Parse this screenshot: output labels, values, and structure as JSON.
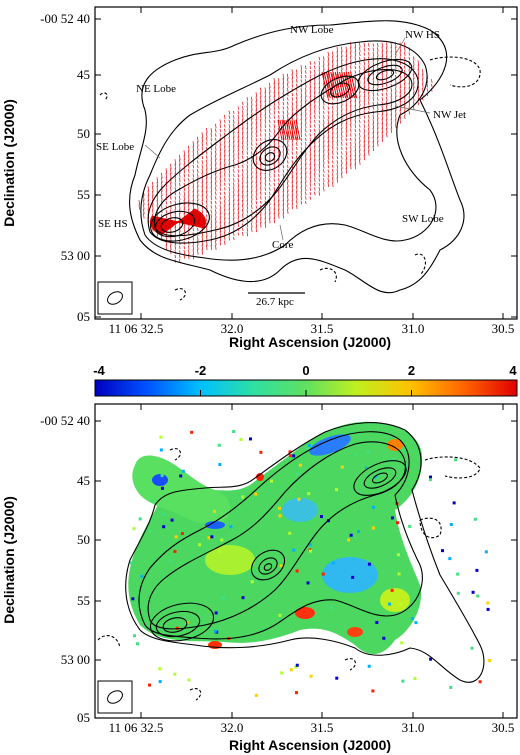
{
  "chart_data": [
    {
      "type": "contour",
      "xlabel": "Right Ascension (J2000)",
      "ylabel": "Declination (J2000)",
      "x_ticks": [
        "11 06 32.5",
        "32.0",
        "31.5",
        "31.0",
        "30.5"
      ],
      "y_ticks": [
        "-00 52 40",
        "45",
        "50",
        "55",
        "53 00",
        "05"
      ],
      "annotations": [
        "NW Lobe",
        "NW HS",
        "NE Lobe",
        "NW Jet",
        "SE Lobe",
        "SE HS",
        "Core",
        "SW Lobe"
      ],
      "scale_bar": "26.7 kpc",
      "overlay": "polarization vectors (red)",
      "beam": true
    },
    {
      "type": "heatmap",
      "xlabel": "Right Ascension (J2000)",
      "ylabel": "Declination (J2000)",
      "x_ticks": [
        "11 06 32.5",
        "32.0",
        "31.5",
        "31.0",
        "30.5"
      ],
      "y_ticks": [
        "-00 52 40",
        "45",
        "50",
        "55",
        "53 00",
        "05"
      ],
      "colorbar_ticks": [
        "-4",
        "-2",
        "0",
        "2",
        "4"
      ],
      "colorbar_range": [
        -4,
        4
      ],
      "colormap": [
        "#0000d0",
        "#00b0ff",
        "#40e080",
        "#b0ff30",
        "#ffd000",
        "#ff2000"
      ],
      "beam": true
    }
  ]
}
